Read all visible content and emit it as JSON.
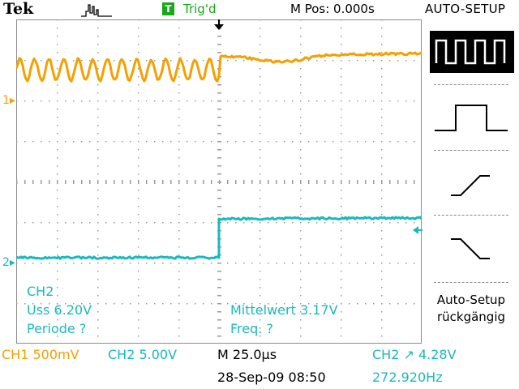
{
  "header": {
    "brand": "Tek",
    "trigger_status": "Trig'd",
    "trigger_badge": "T",
    "position": "M Pos: 0.000s",
    "menu_title": "AUTO-SETUP"
  },
  "markers": {
    "ch1": "1",
    "ch2": "2"
  },
  "measurements": {
    "channel": "CH2",
    "uss": "Uss 6.20V",
    "periode": "Periode ?",
    "mittelwert": "Mittelwert 3.17V",
    "freq": "Freq. ?"
  },
  "footer": {
    "ch1_scale": "CH1  500mV",
    "ch2_scale": "CH2  5.00V",
    "timebase": "M 25.0µs",
    "trigger_source": "CH2",
    "trigger_level": "4.28V",
    "datetime": "28-Sep-09 08:50",
    "frequency": "272.920Hz"
  },
  "side_menu": {
    "items": [
      "square-wave",
      "single-pulse",
      "rising-edge",
      "falling-edge"
    ],
    "undo_line1": "Auto-Setup",
    "undo_line2": "rückgängig"
  },
  "colors": {
    "ch1": "#f5a000",
    "ch2": "#1ab8c0",
    "trigger_badge": "#18a818"
  }
}
